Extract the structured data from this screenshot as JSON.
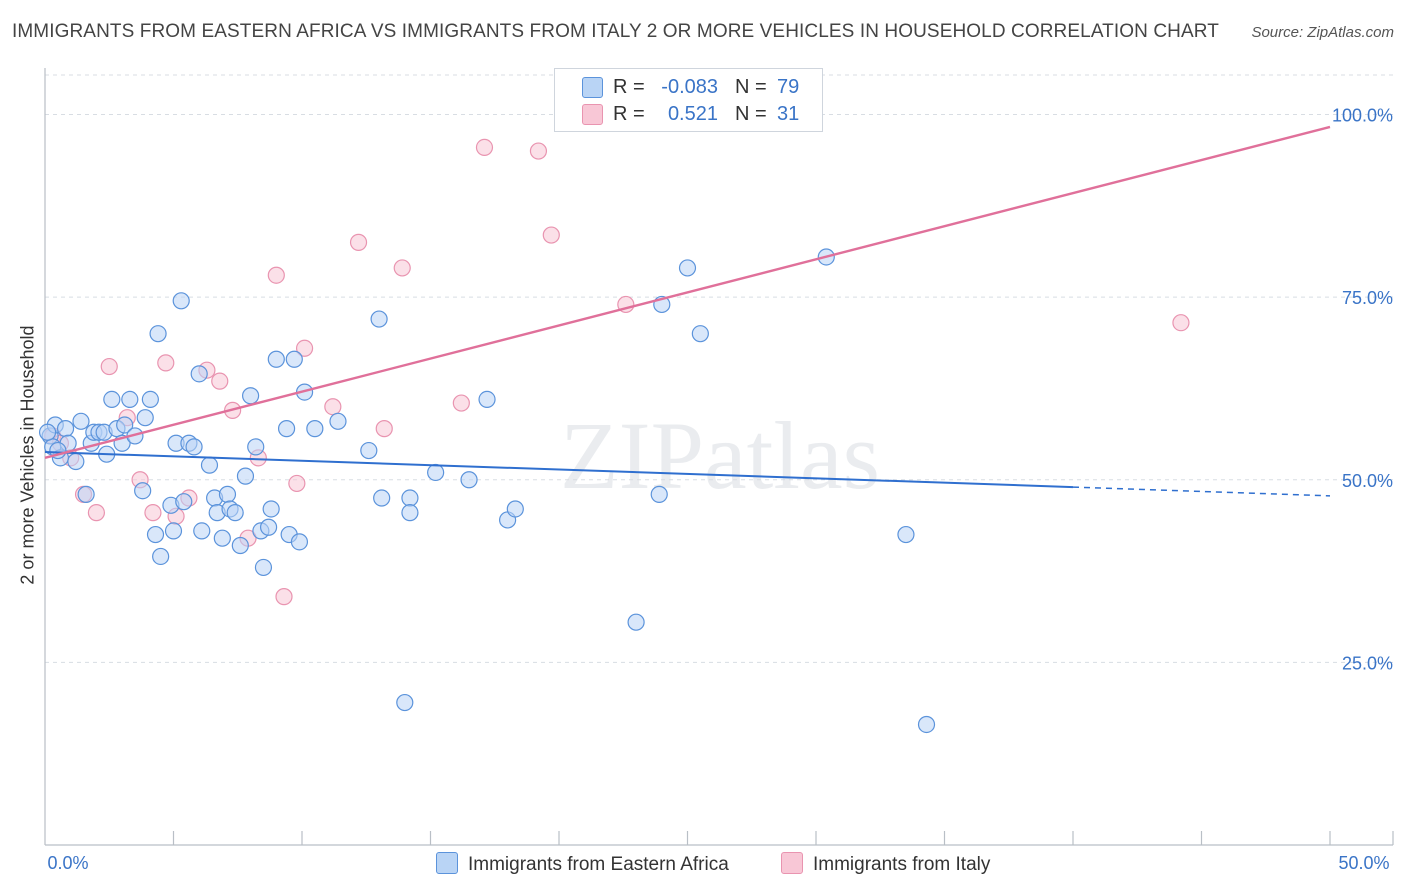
{
  "title": "IMMIGRANTS FROM EASTERN AFRICA VS IMMIGRANTS FROM ITALY 2 OR MORE VEHICLES IN HOUSEHOLD CORRELATION CHART",
  "source": "Source: ZipAtlas.com",
  "watermark": "ZIPatlas",
  "legend": {
    "rows": [
      {
        "r_label": "R =",
        "r_value": "-0.083",
        "n_label": "N =",
        "n_value": "79"
      },
      {
        "r_label": "R =",
        "r_value": "0.521",
        "n_label": "N =",
        "n_value": "31"
      }
    ]
  },
  "colors": {
    "blue_fill": "#b9d4f5",
    "blue_stroke": "#5b93db",
    "blue_line": "#2f6fcf",
    "pink_fill": "#f8c7d6",
    "pink_stroke": "#e994b0",
    "pink_line": "#e0709a",
    "axis_label": "#3a74c7",
    "grid": "#d8dde3"
  },
  "chart_data": {
    "type": "scatter",
    "title": "IMMIGRANTS FROM EASTERN AFRICA VS IMMIGRANTS FROM ITALY 2 OR MORE VEHICLES IN HOUSEHOLD CORRELATION CHART",
    "xlabel": "",
    "ylabel": "2 or more Vehicles in Household",
    "xlim": [
      0,
      50
    ],
    "ylim": [
      0,
      105
    ],
    "x_ticks_labels": [
      "0.0%",
      "50.0%"
    ],
    "y_ticks": [
      25,
      50,
      75,
      100
    ],
    "y_ticks_labels": [
      "25.0%",
      "50.0%",
      "75.0%",
      "100.0%"
    ],
    "grid": true,
    "legend_position": "top-center",
    "series": [
      {
        "name": "Immigrants from Eastern Africa",
        "color": "#5b93db",
        "trend": {
          "x": [
            0,
            40,
            50
          ],
          "y": [
            53.8,
            49.0,
            47.8
          ],
          "solid_until": 40
        },
        "points": [
          [
            0.2,
            56
          ],
          [
            0.3,
            54.5
          ],
          [
            0.4,
            57.5
          ],
          [
            0.6,
            53
          ],
          [
            0.8,
            57
          ],
          [
            0.9,
            55
          ],
          [
            1.2,
            52.5
          ],
          [
            1.4,
            58
          ],
          [
            1.6,
            48
          ],
          [
            1.8,
            55
          ],
          [
            1.9,
            56.5
          ],
          [
            2.1,
            56.5
          ],
          [
            2.3,
            56.5
          ],
          [
            2.4,
            53.5
          ],
          [
            2.6,
            61
          ],
          [
            2.8,
            57
          ],
          [
            3.0,
            55
          ],
          [
            3.1,
            57.5
          ],
          [
            3.3,
            61
          ],
          [
            3.5,
            56
          ],
          [
            3.8,
            48.5
          ],
          [
            3.9,
            58.5
          ],
          [
            4.1,
            61
          ],
          [
            4.3,
            42.5
          ],
          [
            4.4,
            70
          ],
          [
            4.5,
            39.5
          ],
          [
            4.9,
            46.5
          ],
          [
            5.0,
            43
          ],
          [
            5.1,
            55
          ],
          [
            5.3,
            74.5
          ],
          [
            5.4,
            47
          ],
          [
            5.6,
            55
          ],
          [
            5.8,
            54.5
          ],
          [
            6.0,
            64.5
          ],
          [
            6.1,
            43
          ],
          [
            6.4,
            52
          ],
          [
            6.6,
            47.5
          ],
          [
            6.7,
            45.5
          ],
          [
            6.9,
            42
          ],
          [
            7.1,
            48
          ],
          [
            7.2,
            46
          ],
          [
            7.4,
            45.5
          ],
          [
            7.6,
            41
          ],
          [
            7.8,
            50.5
          ],
          [
            8.0,
            61.5
          ],
          [
            8.2,
            54.5
          ],
          [
            8.4,
            43
          ],
          [
            8.5,
            38
          ],
          [
            8.7,
            43.5
          ],
          [
            8.8,
            46
          ],
          [
            9.0,
            66.5
          ],
          [
            9.4,
            57
          ],
          [
            9.5,
            42.5
          ],
          [
            9.7,
            66.5
          ],
          [
            9.9,
            41.5
          ],
          [
            10.1,
            62
          ],
          [
            10.5,
            57
          ],
          [
            11.4,
            58
          ],
          [
            12.6,
            54
          ],
          [
            13.0,
            72
          ],
          [
            13.1,
            47.5
          ],
          [
            14.0,
            19.5
          ],
          [
            14.2,
            47.5
          ],
          [
            14.2,
            45.5
          ],
          [
            15.2,
            51
          ],
          [
            16.5,
            50
          ],
          [
            17.2,
            61
          ],
          [
            18.0,
            44.5
          ],
          [
            18.3,
            46
          ],
          [
            23.0,
            30.5
          ],
          [
            23.9,
            48
          ],
          [
            24.0,
            74
          ],
          [
            25.0,
            79
          ],
          [
            25.5,
            70
          ],
          [
            30.4,
            80.5
          ],
          [
            33.5,
            42.5
          ],
          [
            34.3,
            16.5
          ],
          [
            0.1,
            56.5
          ],
          [
            0.5,
            54
          ]
        ]
      },
      {
        "name": "Immigrants from Italy",
        "color": "#e994b0",
        "trend": {
          "x": [
            0,
            50
          ],
          "y": [
            53.0,
            98.3
          ]
        },
        "points": [
          [
            0.3,
            56
          ],
          [
            0.6,
            55
          ],
          [
            1.0,
            53
          ],
          [
            1.5,
            48
          ],
          [
            2.0,
            45.5
          ],
          [
            2.5,
            65.5
          ],
          [
            3.2,
            58.5
          ],
          [
            3.7,
            50
          ],
          [
            4.2,
            45.5
          ],
          [
            4.7,
            66
          ],
          [
            5.1,
            45
          ],
          [
            5.6,
            47.5
          ],
          [
            6.3,
            65
          ],
          [
            6.8,
            63.5
          ],
          [
            7.3,
            59.5
          ],
          [
            7.9,
            42
          ],
          [
            8.3,
            53
          ],
          [
            9.0,
            78
          ],
          [
            9.3,
            34
          ],
          [
            9.8,
            49.5
          ],
          [
            10.1,
            68
          ],
          [
            11.2,
            60
          ],
          [
            12.2,
            82.5
          ],
          [
            13.2,
            57
          ],
          [
            13.9,
            79
          ],
          [
            16.2,
            60.5
          ],
          [
            17.1,
            95.5
          ],
          [
            19.2,
            95
          ],
          [
            19.7,
            83.5
          ],
          [
            22.6,
            74
          ],
          [
            44.2,
            71.5
          ]
        ]
      }
    ]
  }
}
